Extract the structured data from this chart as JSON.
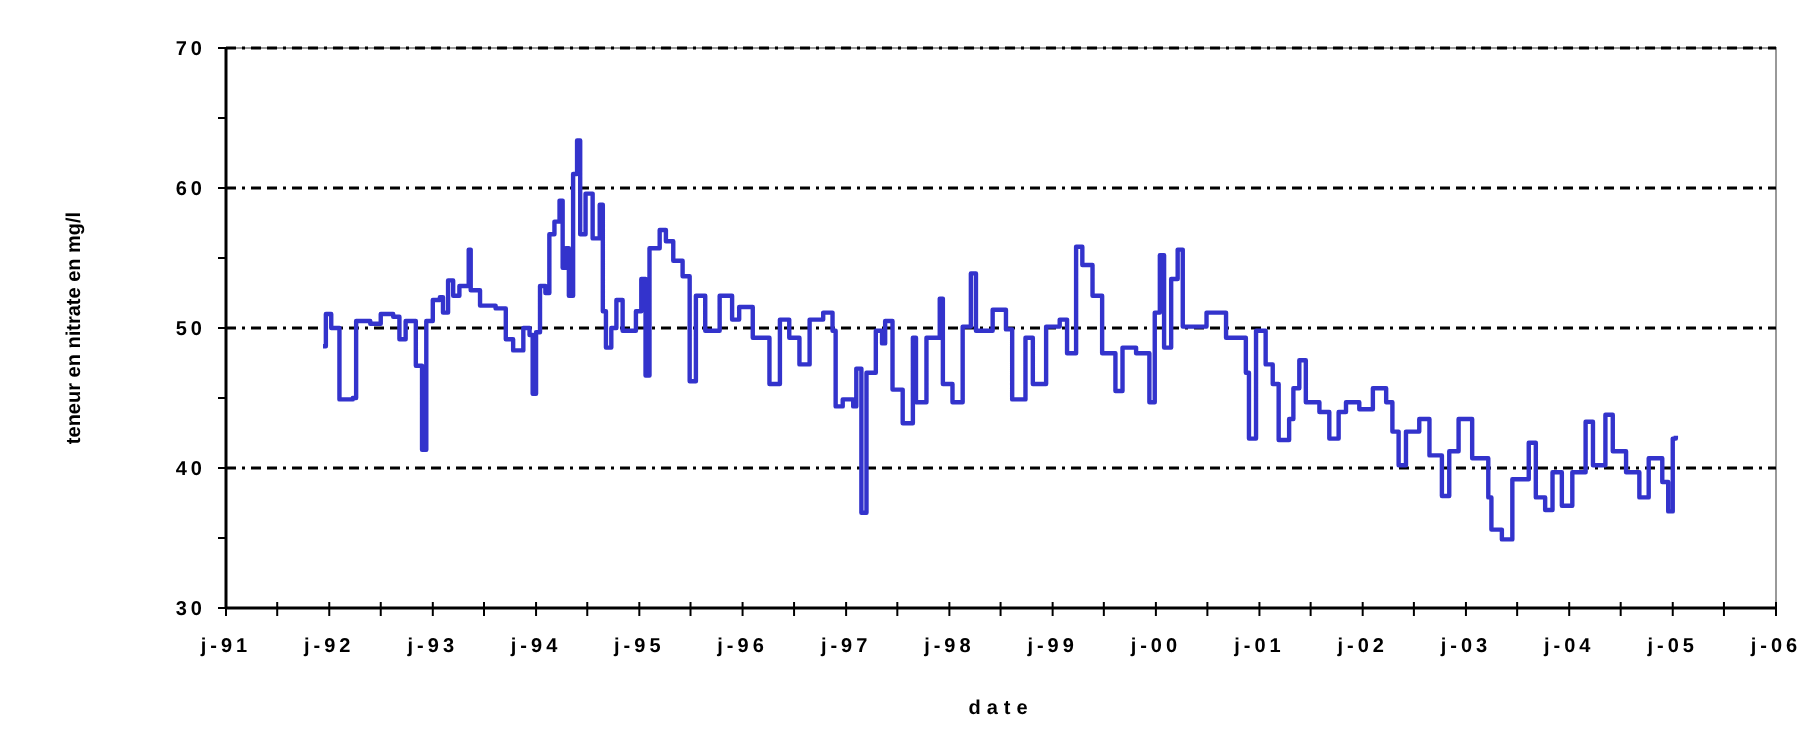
{
  "chart_data": {
    "type": "step",
    "xlabel": "date",
    "ylabel": "teneur en nitrate en mg/l",
    "xlim": [
      "1991-01-01",
      "2006-01-01"
    ],
    "xticks": [
      {
        "value": "1991-01",
        "label": "j-91"
      },
      {
        "value": "1991-07",
        "label": null
      },
      {
        "value": "1992-01",
        "label": "j-92"
      },
      {
        "value": "1992-07",
        "label": null
      },
      {
        "value": "1993-01",
        "label": "j-93"
      },
      {
        "value": "1993-07",
        "label": null
      },
      {
        "value": "1994-01",
        "label": "j-94"
      },
      {
        "value": "1994-07",
        "label": null
      },
      {
        "value": "1995-01",
        "label": "j-95"
      },
      {
        "value": "1995-07",
        "label": null
      },
      {
        "value": "1996-01",
        "label": "j-96"
      },
      {
        "value": "1996-07",
        "label": null
      },
      {
        "value": "1997-01",
        "label": "j-97"
      },
      {
        "value": "1997-07",
        "label": null
      },
      {
        "value": "1998-01",
        "label": "j-98"
      },
      {
        "value": "1998-07",
        "label": null
      },
      {
        "value": "1999-01",
        "label": "j-99"
      },
      {
        "value": "1999-07",
        "label": null
      },
      {
        "value": "2000-01",
        "label": "j-00"
      },
      {
        "value": "2000-07",
        "label": null
      },
      {
        "value": "2001-01",
        "label": "j-01"
      },
      {
        "value": "2001-07",
        "label": null
      },
      {
        "value": "2002-01",
        "label": "j-02"
      },
      {
        "value": "2002-07",
        "label": null
      },
      {
        "value": "2003-01",
        "label": "j-03"
      },
      {
        "value": "2003-07",
        "label": null
      },
      {
        "value": "2004-01",
        "label": "j-04"
      },
      {
        "value": "2004-07",
        "label": null
      },
      {
        "value": "2005-01",
        "label": "j-05"
      },
      {
        "value": "2005-07",
        "label": null
      },
      {
        "value": "2006-01",
        "label": "j-06"
      }
    ],
    "ylim": [
      30,
      70
    ],
    "yticks": [
      30,
      {
        "value": 35,
        "label": null
      },
      40,
      {
        "value": 45,
        "label": null
      },
      50,
      {
        "value": 55,
        "label": null
      },
      60,
      {
        "value": 65,
        "label": null
      },
      70
    ],
    "grid": "y",
    "line_style": "solid",
    "marker": "none",
    "series": [
      {
        "color": "#3333cc",
        "x": [
          "1991-12-10",
          "1991-12-20",
          "1992-01-08",
          "1992-02-06",
          "1992-03-24",
          "1992-04-05",
          "1992-05-25",
          "1992-07-01",
          "1992-08-14",
          "1992-09-05",
          "1992-09-27",
          "1992-11-02",
          "1992-11-24",
          "1992-12-09",
          "1993-01-01",
          "1993-01-26",
          "1993-02-06",
          "1993-02-24",
          "1993-03-14",
          "1993-04-05",
          "1993-05-08",
          "1993-05-15",
          "1993-06-17",
          "1993-08-11",
          "1993-09-16",
          "1993-10-12",
          "1993-11-17",
          "1993-12-09",
          "1993-12-20",
          "1994-01-01",
          "1994-01-15",
          "1994-02-03",
          "1994-02-17",
          "1994-03-07",
          "1994-03-25",
          "1994-04-05",
          "1994-04-16",
          "1994-04-27",
          "1994-05-12",
          "1994-05-26",
          "1994-06-06",
          "1994-06-25",
          "1994-07-20",
          "1994-08-14",
          "1994-08-25",
          "1994-09-05",
          "1994-09-24",
          "1994-10-12",
          "1994-11-03",
          "1994-12-20",
          "1995-01-08",
          "1995-01-23",
          "1995-02-06",
          "1995-03-14",
          "1995-04-05",
          "1995-05-01",
          "1995-06-03",
          "1995-06-28",
          "1995-07-20",
          "1995-08-22",
          "1995-10-12",
          "1995-11-25",
          "1995-12-20",
          "1996-02-06",
          "1996-04-05",
          "1996-05-12",
          "1996-06-14",
          "1996-07-20",
          "1996-08-25",
          "1996-10-12",
          "1996-11-14",
          "1996-11-25",
          "1996-12-20",
          "1997-01-26",
          "1997-02-06",
          "1997-02-24",
          "1997-03-14",
          "1997-04-16",
          "1997-05-08",
          "1997-05-19",
          "1997-06-14",
          "1997-07-20",
          "1997-08-25",
          "1997-09-05",
          "1997-10-12",
          "1997-11-28",
          "1997-12-09",
          "1998-01-12",
          "1998-02-17",
          "1998-03-18",
          "1998-04-05",
          "1998-06-03",
          "1998-07-20",
          "1998-08-11",
          "1998-09-27",
          "1998-10-23",
          "1998-12-09",
          "1999-01-26",
          "1999-02-21",
          "1999-03-25",
          "1999-04-16",
          "1999-05-22",
          "1999-06-25",
          "1999-08-11",
          "1999-09-05",
          "1999-10-23",
          "1999-12-09",
          "1999-12-28",
          "2000-01-15",
          "2000-01-30",
          "2000-02-24",
          "2000-03-18",
          "2000-04-05",
          "2000-06-28",
          "2000-09-05",
          "2000-11-14",
          "2000-11-25",
          "2000-12-20",
          "2001-01-23",
          "2001-02-17",
          "2001-03-10",
          "2001-04-16",
          "2001-05-01",
          "2001-05-22",
          "2001-06-14",
          "2001-08-01",
          "2001-09-05",
          "2001-10-08",
          "2001-11-03",
          "2001-12-20",
          "2002-02-06",
          "2002-03-25",
          "2002-04-16",
          "2002-05-08",
          "2002-06-03",
          "2002-07-20",
          "2002-08-25",
          "2002-10-08",
          "2002-11-03",
          "2002-12-06",
          "2003-01-23",
          "2003-03-21",
          "2003-04-01",
          "2003-05-08",
          "2003-06-14",
          "2003-08-11",
          "2003-09-05",
          "2003-10-08",
          "2003-11-03",
          "2003-12-06",
          "2004-01-12",
          "2004-02-28",
          "2004-03-25",
          "2004-05-08",
          "2004-06-03",
          "2004-07-20",
          "2004-09-05",
          "2004-10-08",
          "2004-11-25",
          "2004-12-16",
          "2005-01-01",
          "2005-01-12"
        ],
        "values": [
          48.7,
          51.0,
          50,
          44.9,
          45,
          50.5,
          50.3,
          51.0,
          50.8,
          49.2,
          50.5,
          47.3,
          41.3,
          50.5,
          52.0,
          52.2,
          51.1,
          53.4,
          52.3,
          53,
          55.6,
          52.7,
          51.6,
          51.4,
          49.2,
          48.4,
          50.0,
          49.5,
          45.3,
          49.7,
          53,
          52.5,
          56.7,
          57.6,
          59.1,
          54.3,
          55.7,
          52.3,
          61,
          63.4,
          56.7,
          59.6,
          56.4,
          58.8,
          51.2,
          48.6,
          50,
          52,
          49.8,
          51.2,
          53.5,
          46.6,
          55.7,
          57,
          56.2,
          54.8,
          53.7,
          46.2,
          52.3,
          49.8,
          52.3,
          50.6,
          51.5,
          49.3,
          46.0,
          50.6,
          49.3,
          47.4,
          50.6,
          51.1,
          49.8,
          44.4,
          44.9,
          44.4,
          47.1,
          36.8,
          46.8,
          49.8,
          48.9,
          50.5,
          45.6,
          43.2,
          49.3,
          44.7,
          49.3,
          52.1,
          46.0,
          44.7,
          50.1,
          53.9,
          49.8,
          51.3,
          49.9,
          44.9,
          49.3,
          46.0,
          50.1,
          50.6,
          48.2,
          55.8,
          54.5,
          52.3,
          48.2,
          45.5,
          48.6,
          48.2,
          44.7,
          51.1,
          55.2,
          48.6,
          53.5,
          55.6,
          50.1,
          51.1,
          49.3,
          46.8,
          42.1,
          49.8,
          47.4,
          46.0,
          42,
          43.5,
          45.7,
          47.7,
          44.7,
          44.0,
          42.1,
          44,
          44.7,
          44.2,
          45.7,
          44.7,
          42.6,
          40.2,
          42.6,
          43.5,
          40.9,
          38.0,
          41.2,
          43.5,
          40.7,
          37.9,
          35.6,
          34.9,
          39.2,
          41.8,
          37.9,
          37,
          39.7,
          37.3,
          39.7,
          43.3,
          40.2,
          43.8,
          41.2,
          39.7,
          37.9,
          40.7,
          39,
          36.9,
          42.1,
          42.3
        ]
      }
    ]
  }
}
